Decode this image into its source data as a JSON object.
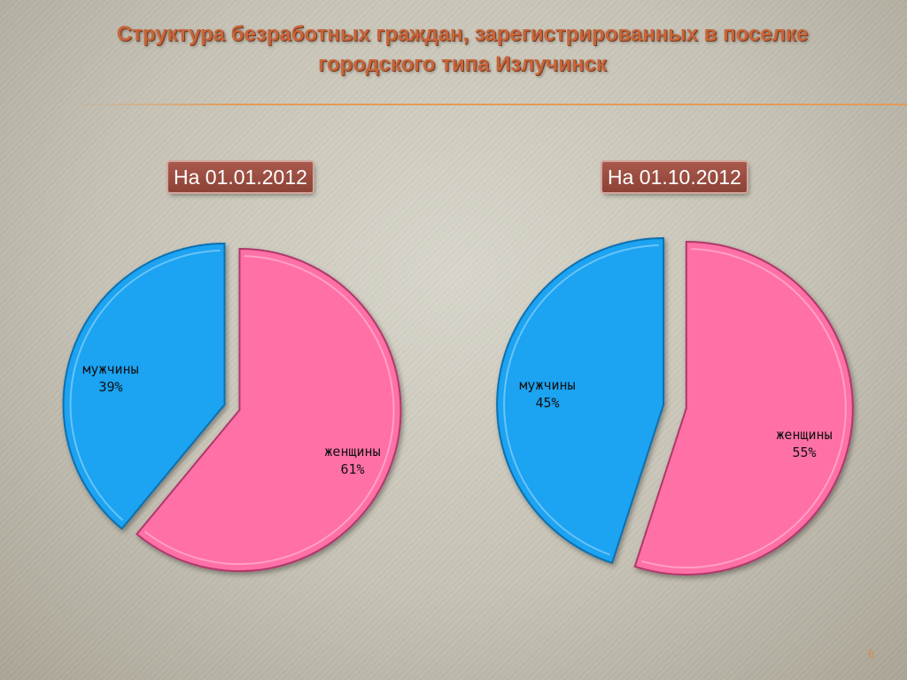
{
  "title_lines": [
    "Структура безработных граждан, зарегистрированных в поселке",
    "городского типа Излучинск"
  ],
  "page_number": "6",
  "colors": {
    "men": "#1aa3f2",
    "women": "#ff6fa6",
    "title": "#c8653a",
    "label_bg": "#9c4e42"
  },
  "chart_data": [
    {
      "type": "pie",
      "title": "На 01.01.2012",
      "slices": [
        {
          "name": "мужчины",
          "value": 39,
          "label": "39%"
        },
        {
          "name": "женщины",
          "value": 61,
          "label": "61%"
        }
      ]
    },
    {
      "type": "pie",
      "title": "На 01.10.2012",
      "slices": [
        {
          "name": "мужчины",
          "value": 45,
          "label": "45%"
        },
        {
          "name": "женщины",
          "value": 55,
          "label": "55%"
        }
      ]
    }
  ]
}
